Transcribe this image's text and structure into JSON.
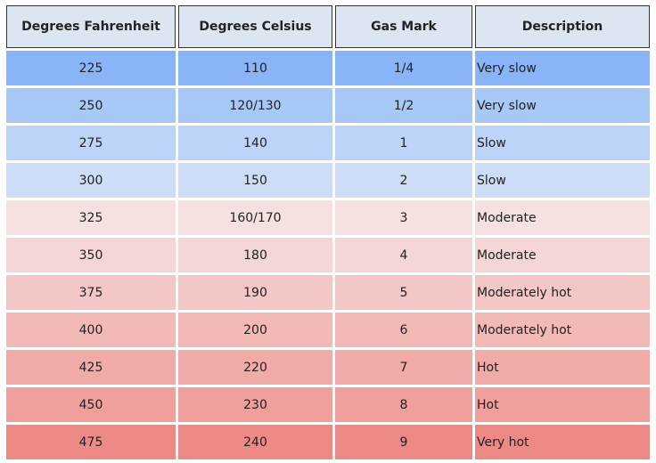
{
  "table": {
    "header": [
      "Degrees Fahrenheit",
      "Degrees Celsius",
      "Gas Mark",
      "Description"
    ],
    "rows": [
      [
        "225",
        "110",
        "1/4",
        "Very slow"
      ],
      [
        "250",
        "120/130",
        "1/2",
        "Very slow"
      ],
      [
        "275",
        "140",
        "1",
        "Slow"
      ],
      [
        "300",
        "150",
        "2",
        "Slow"
      ],
      [
        "325",
        "160/170",
        "3",
        "Moderate"
      ],
      [
        "350",
        "180",
        "4",
        "Moderate"
      ],
      [
        "375",
        "190",
        "5",
        "Moderately hot"
      ],
      [
        "400",
        "200",
        "6",
        "Moderately hot"
      ],
      [
        "425",
        "220",
        "7",
        "Hot"
      ],
      [
        "450",
        "230",
        "8",
        "Hot"
      ],
      [
        "475",
        "240",
        "9",
        "Very hot"
      ]
    ]
  }
}
